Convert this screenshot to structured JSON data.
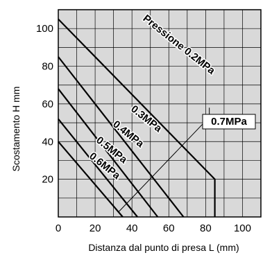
{
  "chart_data": {
    "type": "line",
    "xlabel": "Distanza dal punto di presa  L (mm)",
    "ylabel": "Scostamento  H mm",
    "xlim": [
      0,
      110
    ],
    "ylim": [
      0,
      110
    ],
    "x_ticks": [
      "0",
      "20",
      "40",
      "60",
      "80",
      "100"
    ],
    "y_ticks": [
      "20",
      "40",
      "60",
      "80",
      "100"
    ],
    "grid": true,
    "background": "#d9d9d9",
    "series": [
      {
        "name": "Pressione 0.2MPa",
        "points": [
          [
            0,
            105
          ],
          [
            85,
            20
          ],
          [
            85,
            0
          ]
        ]
      },
      {
        "name": "0.3MPa",
        "points": [
          [
            0,
            85
          ],
          [
            68,
            0
          ]
        ]
      },
      {
        "name": "0.4MPa",
        "points": [
          [
            0,
            68
          ],
          [
            54,
            0
          ]
        ]
      },
      {
        "name": "0.5MPa",
        "points": [
          [
            0,
            52
          ],
          [
            43,
            0
          ]
        ]
      },
      {
        "name": "0.6MPa",
        "points": [
          [
            0,
            40
          ],
          [
            35,
            0
          ]
        ]
      },
      {
        "name": "0.7MPa",
        "points": [
          [
            0,
            35
          ],
          [
            33,
            0
          ]
        ]
      }
    ],
    "annotations": [
      {
        "text": "Pressione 0.2MPa",
        "series": 0
      },
      {
        "text": "0.3MPa",
        "series": 1
      },
      {
        "text": "0.4MPa",
        "series": 2
      },
      {
        "text": "0.5MPa",
        "series": 3
      },
      {
        "text": "0.6MPa",
        "series": 4
      },
      {
        "text": "0.7MPa",
        "series": 5,
        "boxed": true
      }
    ]
  }
}
